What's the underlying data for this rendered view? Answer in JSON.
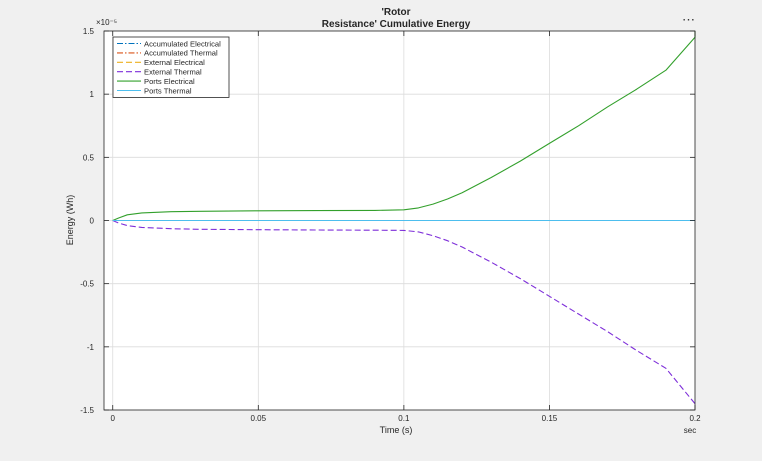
{
  "window": {
    "menu_label": "⋯"
  },
  "chart_data": {
    "type": "line",
    "title_lines": [
      "'Rotor",
      "Resistance' Cumulative Energy"
    ],
    "xlabel": "Time (s)",
    "xunit": "sec",
    "ylabel": "Energy (Wh)",
    "y_exponent": "×10⁻⁵",
    "xlim": [
      -0.003,
      0.2
    ],
    "ylim": [
      -1.5,
      1.5
    ],
    "xticks": [
      0,
      0.05,
      0.1,
      0.15,
      0.2
    ],
    "xtick_labels": [
      "0",
      "0.05",
      "0.1",
      "0.15",
      "0.2"
    ],
    "yticks": [
      -1.5,
      -1,
      -0.5,
      0,
      0.5,
      1,
      1.5
    ],
    "ytick_labels": [
      "-1.5",
      "-1",
      "-0.5",
      "0",
      "0.5",
      "1",
      "1.5"
    ],
    "grid": true,
    "legend_position": "top-left",
    "series": [
      {
        "name": "Accumulated Electrical",
        "color": "#0072bd",
        "dash": "dashdot",
        "x": [
          0,
          0.2
        ],
        "y": [
          0,
          0
        ]
      },
      {
        "name": "Accumulated Thermal",
        "color": "#d95319",
        "dash": "dashdot",
        "x": [
          0,
          0.2
        ],
        "y": [
          0,
          0
        ]
      },
      {
        "name": "External Electrical",
        "color": "#edb120",
        "dash": "dash",
        "x": [
          0,
          0.2
        ],
        "y": [
          0,
          0
        ]
      },
      {
        "name": "External Thermal",
        "color": "#7e2fd9",
        "dash": "dash",
        "x": [
          0,
          0.002,
          0.005,
          0.01,
          0.02,
          0.03,
          0.05,
          0.07,
          0.09,
          0.1,
          0.105,
          0.11,
          0.115,
          0.12,
          0.13,
          0.14,
          0.15,
          0.16,
          0.17,
          0.18,
          0.19,
          0.2
        ],
        "y": [
          0,
          -0.02,
          -0.04,
          -0.055,
          -0.065,
          -0.07,
          -0.073,
          -0.075,
          -0.077,
          -0.078,
          -0.09,
          -0.12,
          -0.16,
          -0.21,
          -0.33,
          -0.46,
          -0.6,
          -0.74,
          -0.88,
          -1.03,
          -1.17,
          -1.45
        ]
      },
      {
        "name": "Ports Electrical",
        "color": "#33a02c",
        "dash": "solid",
        "x": [
          0,
          0.002,
          0.005,
          0.01,
          0.02,
          0.03,
          0.05,
          0.07,
          0.09,
          0.1,
          0.105,
          0.11,
          0.115,
          0.12,
          0.13,
          0.14,
          0.15,
          0.16,
          0.17,
          0.18,
          0.19,
          0.2,
          0.2
        ],
        "y": [
          0,
          0.02,
          0.045,
          0.06,
          0.07,
          0.073,
          0.077,
          0.078,
          0.08,
          0.085,
          0.1,
          0.13,
          0.17,
          0.22,
          0.34,
          0.47,
          0.61,
          0.75,
          0.9,
          1.04,
          1.19,
          1.45,
          1.5
        ]
      },
      {
        "name": "Ports Thermal",
        "color": "#4dbeee",
        "dash": "solid",
        "x": [
          0,
          0.2
        ],
        "y": [
          0,
          0
        ]
      }
    ]
  }
}
